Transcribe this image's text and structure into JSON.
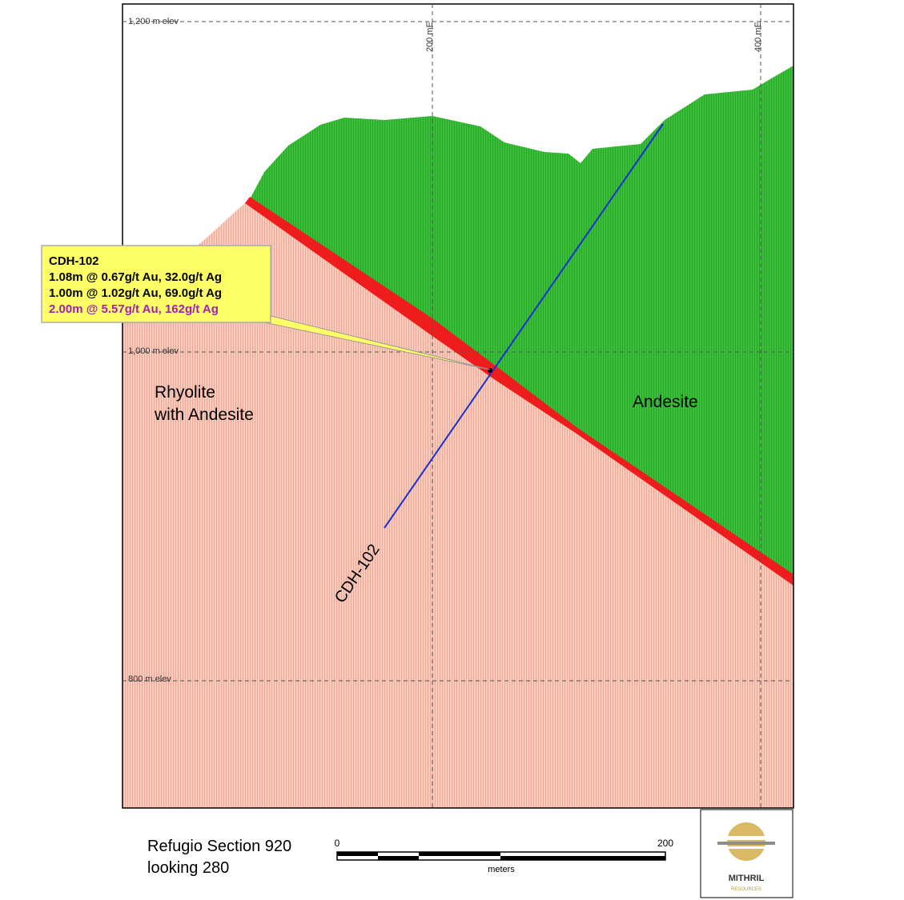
{
  "elevations": [
    "1,200 m elev",
    "1,000 m elev",
    "800 m elev"
  ],
  "eastings": [
    "200 mE",
    "400 mE"
  ],
  "callout": {
    "lines": [
      "CDH-102",
      "1.08m @ 0.67g/t Au, 32.0g/t Ag",
      "1.00m @ 1.02g/t Au, 69.0g/t Ag",
      "2.00m @ 5.57g/t Au, 162g/t Ag"
    ]
  },
  "units": {
    "rhyolite": [
      "Rhyolite",
      "with Andesite"
    ],
    "andesite": "Andesite"
  },
  "drillhole": "CDH-102",
  "footer": {
    "title": "Refugio Section 920",
    "view": "looking 280"
  },
  "scale_bar": {
    "start": "0",
    "end": "200",
    "unit": "meters"
  },
  "logo": {
    "name": "MITHRIL",
    "tagline": "RESOURCES"
  }
}
